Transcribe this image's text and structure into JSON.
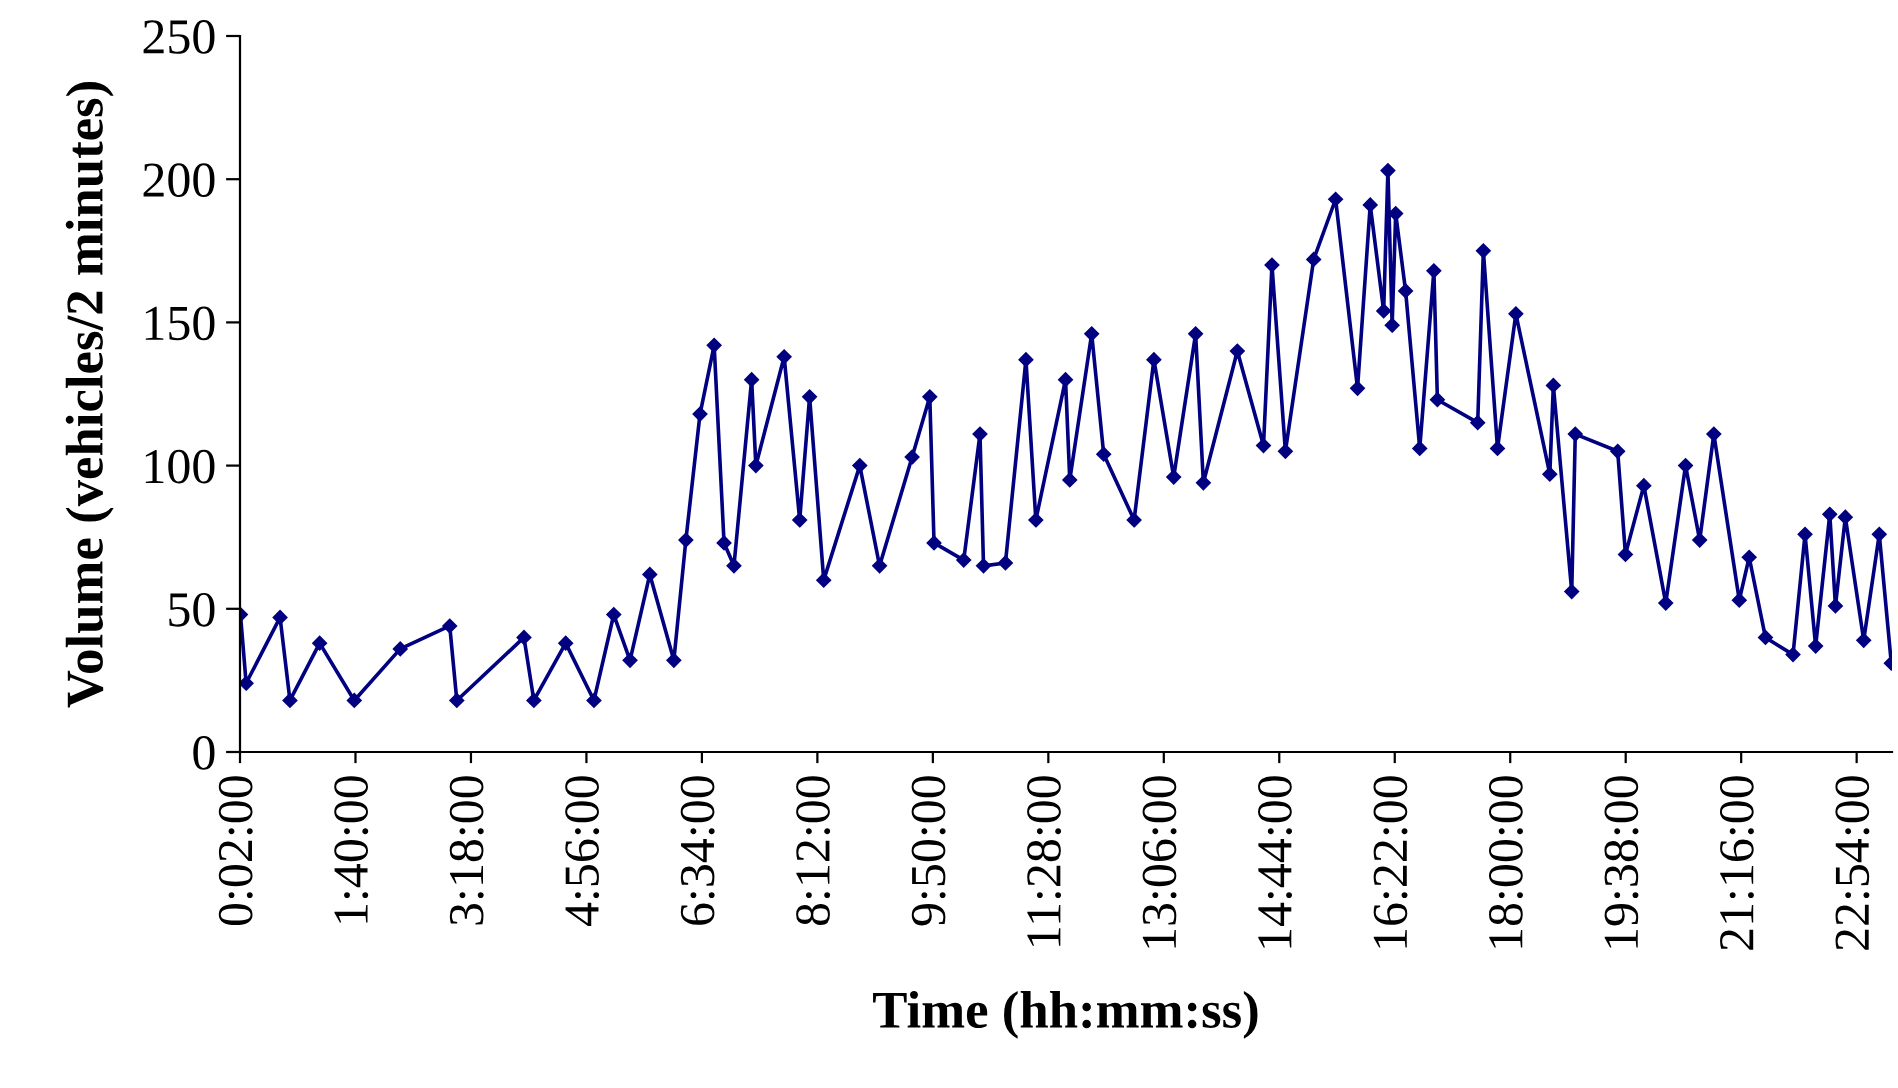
{
  "chart_data": {
    "type": "line",
    "xlabel": "Time (hh:mm:ss)",
    "ylabel": "Volume (vehicles/2 minutes)",
    "x": [
      0.04,
      0.12,
      0.6,
      0.74,
      1.16,
      1.65,
      2.3,
      3.0,
      3.1,
      4.05,
      4.19,
      4.64,
      5.04,
      5.32,
      5.55,
      5.83,
      6.17,
      6.34,
      6.54,
      6.74,
      6.88,
      7.02,
      7.27,
      7.33,
      7.73,
      7.95,
      8.09,
      8.29,
      8.8,
      9.08,
      9.54,
      9.79,
      9.85,
      10.27,
      10.5,
      10.55,
      10.86,
      11.15,
      11.29,
      11.71,
      11.77,
      12.08,
      12.25,
      12.68,
      12.96,
      13.24,
      13.55,
      13.66,
      14.14,
      14.51,
      14.63,
      14.82,
      15.22,
      15.53,
      15.84,
      16.02,
      16.21,
      16.27,
      16.33,
      16.38,
      16.52,
      16.72,
      16.92,
      16.97,
      17.54,
      17.62,
      17.82,
      18.08,
      18.56,
      18.61,
      18.87,
      18.92,
      19.52,
      19.63,
      19.89,
      20.2,
      20.48,
      20.68,
      20.88,
      21.24,
      21.38,
      21.61,
      22.0,
      22.17,
      22.32,
      22.52,
      22.6,
      22.74,
      23.0,
      23.22,
      23.39
    ],
    "series": [
      {
        "color": "#000080",
        "values": [
          48,
          24,
          47,
          18,
          38,
          18,
          36,
          44,
          18,
          40,
          18,
          38,
          18,
          48,
          32,
          62,
          32,
          74,
          118,
          142,
          73,
          65,
          130,
          100,
          138,
          81,
          124,
          60,
          100,
          65,
          103,
          124,
          73,
          67,
          111,
          65,
          66,
          137,
          81,
          130,
          95,
          146,
          104,
          81,
          137,
          96,
          146,
          94,
          140,
          107,
          170,
          105,
          172,
          193,
          127,
          191,
          154,
          203,
          149,
          188,
          161,
          106,
          168,
          123,
          115,
          175,
          106,
          153,
          97,
          128,
          56,
          111,
          105,
          69,
          93,
          52,
          100,
          74,
          111,
          53,
          68,
          40,
          34,
          76,
          37,
          83,
          51,
          82,
          39,
          76,
          31
        ]
      }
    ],
    "marker": "diamond",
    "line_style": "solid",
    "grid": false,
    "xlim": [
      0.0333,
      23.4
    ],
    "xticks": [
      {
        "value": 0.0333,
        "label": "0:02:00"
      },
      {
        "value": 1.6667,
        "label": "1:40:00"
      },
      {
        "value": 3.3,
        "label": "3:18:00"
      },
      {
        "value": 4.9333,
        "label": "4:56:00"
      },
      {
        "value": 6.5667,
        "label": "6:34:00"
      },
      {
        "value": 8.2,
        "label": "8:12:00"
      },
      {
        "value": 9.8333,
        "label": "9:50:00"
      },
      {
        "value": 11.4667,
        "label": "11:28:00"
      },
      {
        "value": 13.1,
        "label": "13:06:00"
      },
      {
        "value": 14.7333,
        "label": "14:44:00"
      },
      {
        "value": 16.3667,
        "label": "16:22:00"
      },
      {
        "value": 18,
        "label": "18:00:00"
      },
      {
        "value": 19.6333,
        "label": "19:38:00"
      },
      {
        "value": 21.2667,
        "label": "21:16:00"
      },
      {
        "value": 22.9,
        "label": "22:54:00"
      }
    ],
    "ylim": [
      0,
      250
    ],
    "yticks": [
      0,
      50,
      100,
      150,
      200,
      250
    ]
  }
}
